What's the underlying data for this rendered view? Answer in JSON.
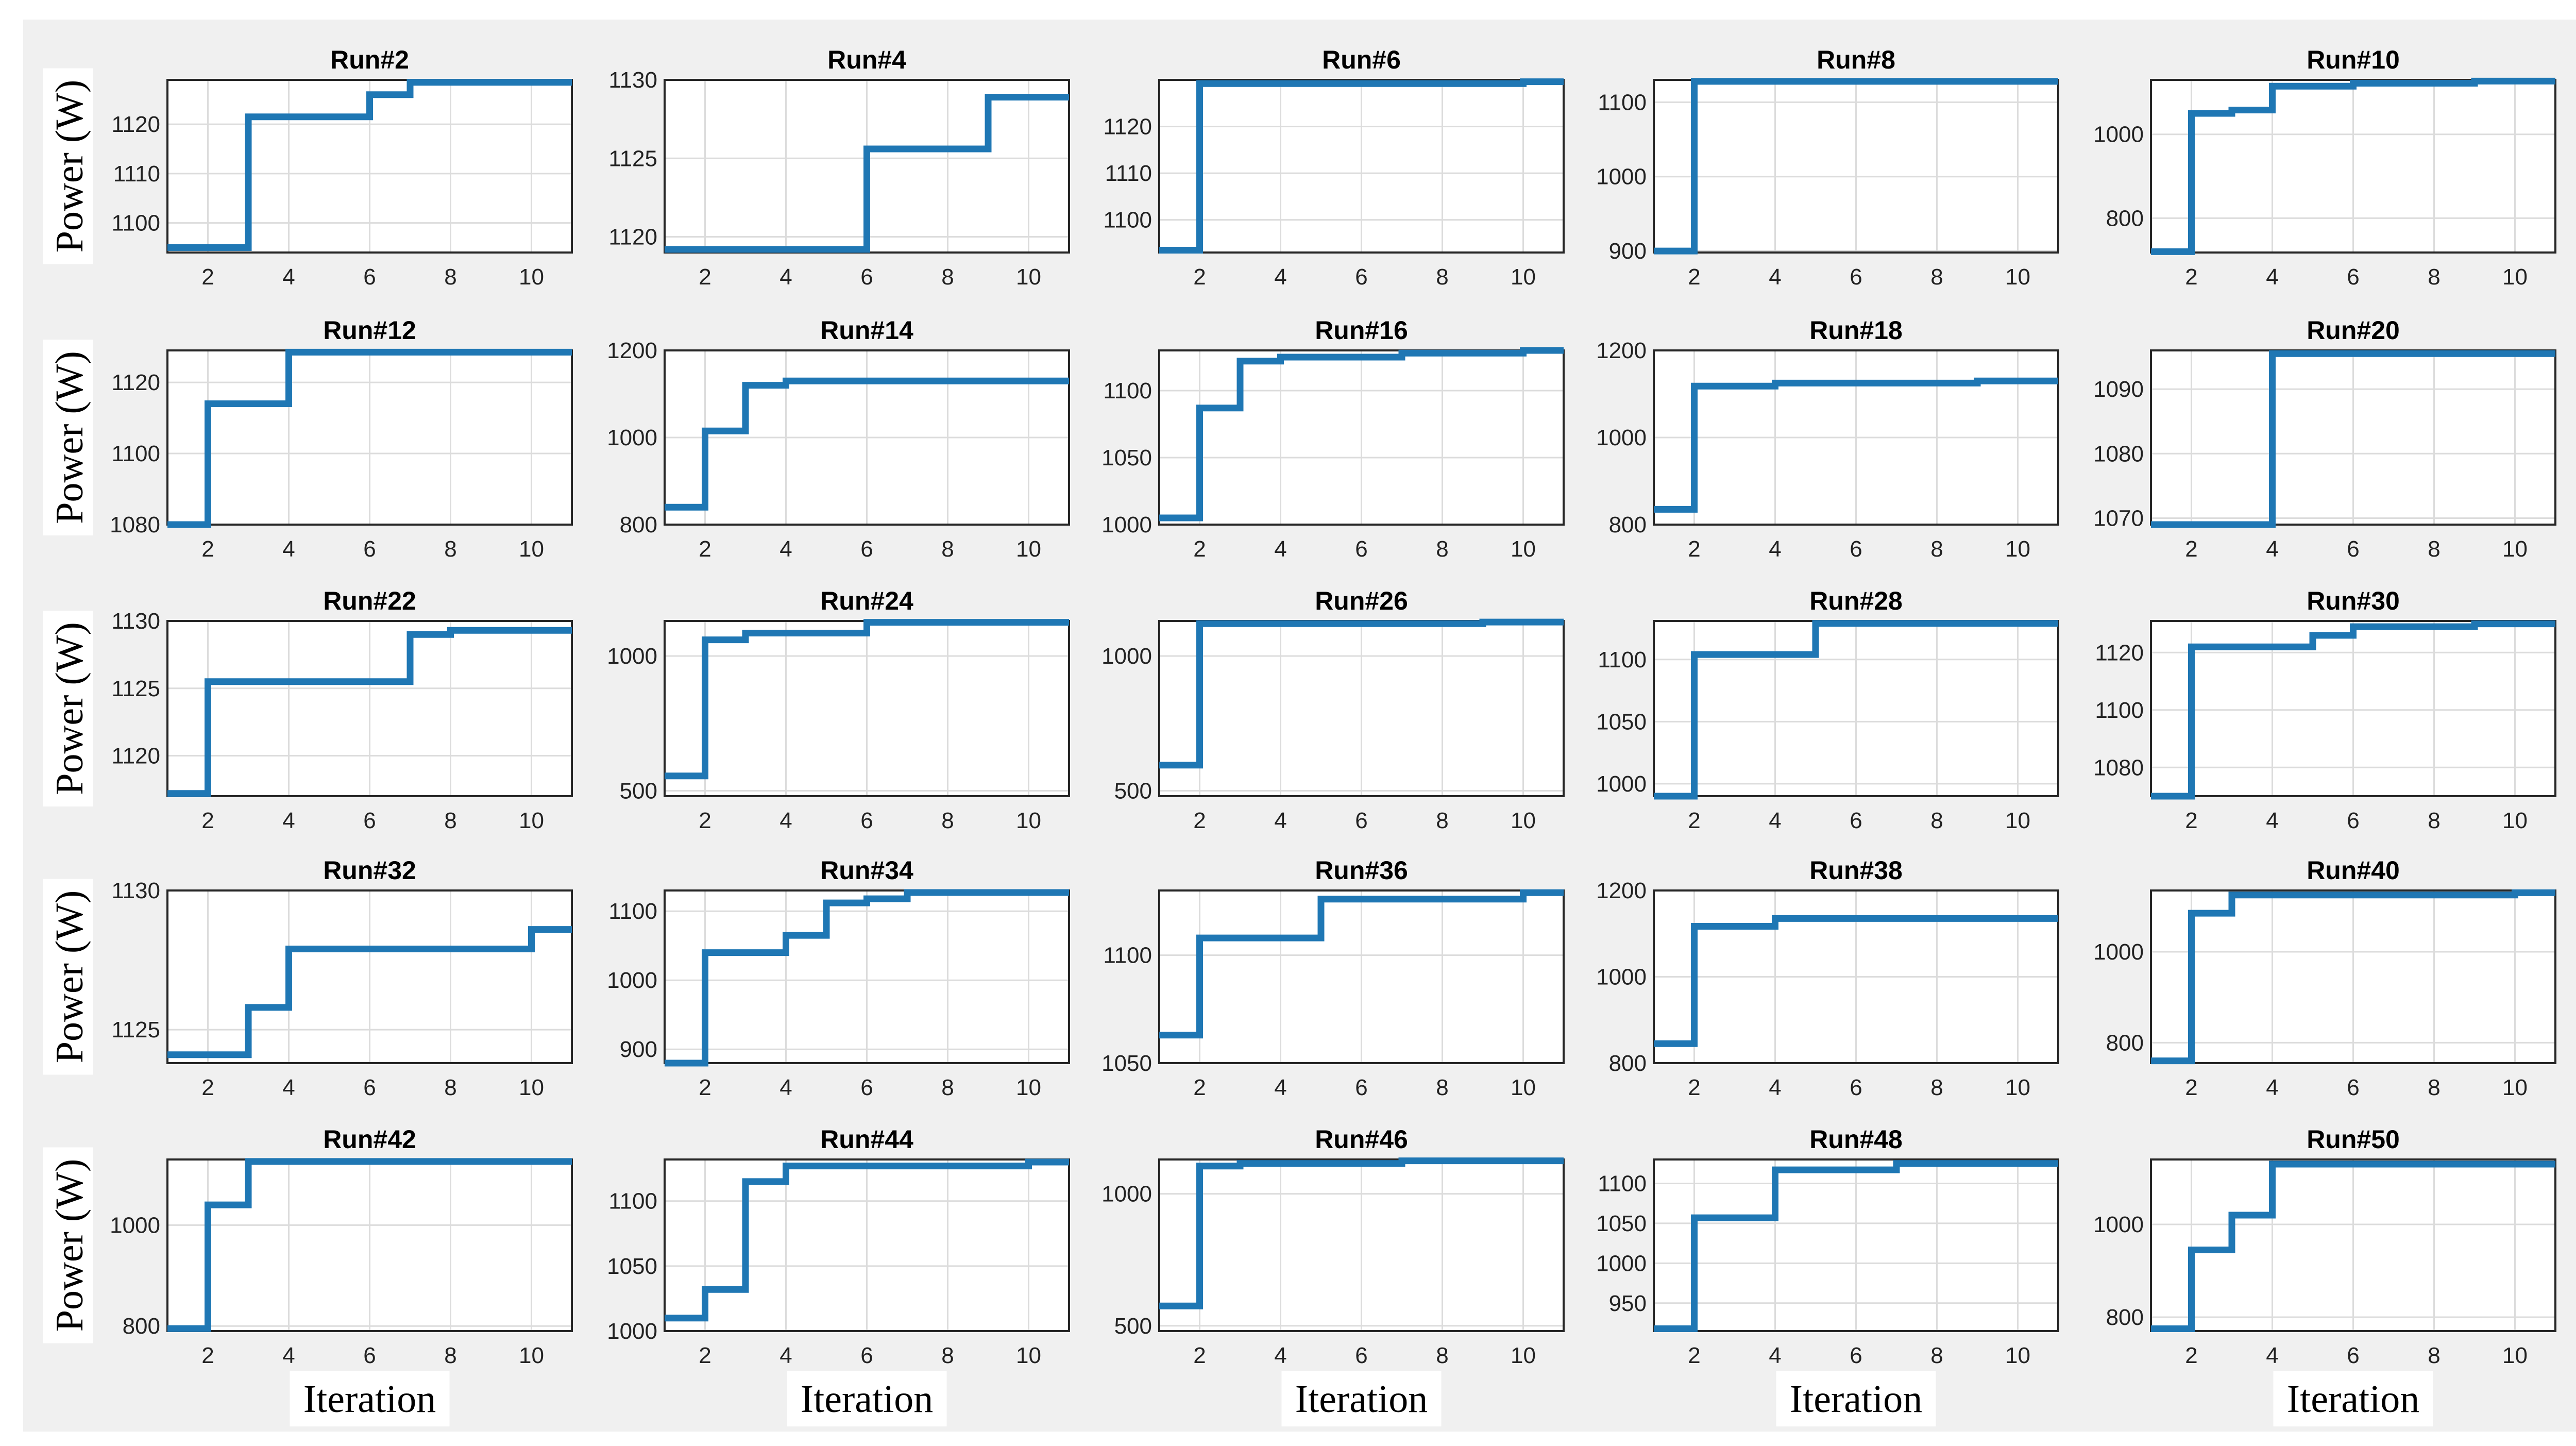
{
  "ylabel": "Power (W)",
  "xlabel": "Iteration",
  "colors": {
    "series": "#1f77b4",
    "panel": "#f0f0f0"
  },
  "chart_data": [
    {
      "type": "line",
      "title": "Run#2",
      "xlabel": "",
      "ylabel": "Power (W)",
      "xlim": [
        1,
        11
      ],
      "ylim": [
        1094,
        1129
      ],
      "xticks": [
        2,
        4,
        6,
        8,
        10
      ],
      "yticks": [
        1100,
        1110,
        1120
      ],
      "series": [
        {
          "name": "Run#2",
          "x": [
            1,
            3,
            3,
            6,
            6,
            7,
            7,
            11
          ],
          "y": [
            1095,
            1095,
            1121.5,
            1121.5,
            1126,
            1126,
            1128.5,
            1128.5
          ]
        }
      ]
    },
    {
      "type": "line",
      "title": "Run#4",
      "xlabel": "",
      "ylabel": "",
      "xlim": [
        1,
        11
      ],
      "ylim": [
        1119,
        1130
      ],
      "xticks": [
        2,
        4,
        6,
        8,
        10
      ],
      "yticks": [
        1120,
        1125,
        1130
      ],
      "series": [
        {
          "name": "Run#4",
          "x": [
            1,
            6,
            6,
            9,
            9,
            11
          ],
          "y": [
            1119.2,
            1119.2,
            1125.6,
            1125.6,
            1128.9,
            1128.9
          ]
        }
      ]
    },
    {
      "type": "line",
      "title": "Run#6",
      "xlabel": "",
      "ylabel": "",
      "xlim": [
        1,
        11
      ],
      "ylim": [
        1093,
        1130
      ],
      "xticks": [
        2,
        4,
        6,
        8,
        10
      ],
      "yticks": [
        1100,
        1110,
        1120
      ],
      "series": [
        {
          "name": "Run#6",
          "x": [
            1,
            2,
            2,
            10,
            10,
            11
          ],
          "y": [
            1093.5,
            1093.5,
            1129.2,
            1129.2,
            1129.6,
            1129.6
          ]
        }
      ]
    },
    {
      "type": "line",
      "title": "Run#8",
      "xlabel": "",
      "ylabel": "",
      "xlim": [
        1,
        11
      ],
      "ylim": [
        898,
        1130
      ],
      "xticks": [
        2,
        4,
        6,
        8,
        10
      ],
      "yticks": [
        900,
        1000,
        1100
      ],
      "series": [
        {
          "name": "Run#8",
          "x": [
            1,
            2,
            2,
            11
          ],
          "y": [
            900,
            900,
            1128,
            1128
          ]
        }
      ]
    },
    {
      "type": "line",
      "title": "Run#10",
      "xlabel": "",
      "ylabel": "",
      "xlim": [
        1,
        11
      ],
      "ylim": [
        718,
        1130
      ],
      "xticks": [
        2,
        4,
        6,
        8,
        10
      ],
      "yticks": [
        800,
        1000
      ],
      "series": [
        {
          "name": "Run#10",
          "x": [
            1,
            2,
            2,
            3,
            3,
            4,
            4,
            6,
            6,
            9,
            9,
            11
          ],
          "y": [
            720,
            720,
            1050,
            1050,
            1058,
            1058,
            1115,
            1115,
            1122,
            1122,
            1127,
            1127
          ]
        }
      ]
    },
    {
      "type": "line",
      "title": "Run#12",
      "xlabel": "",
      "ylabel": "Power (W)",
      "xlim": [
        1,
        11
      ],
      "ylim": [
        1080,
        1129
      ],
      "xticks": [
        2,
        4,
        6,
        8,
        10
      ],
      "yticks": [
        1080,
        1100,
        1120
      ],
      "series": [
        {
          "name": "Run#12",
          "x": [
            1,
            2,
            2,
            4,
            4,
            11
          ],
          "y": [
            1080,
            1080,
            1114,
            1114,
            1128.5,
            1128.5
          ]
        }
      ]
    },
    {
      "type": "line",
      "title": "Run#14",
      "xlabel": "",
      "ylabel": "",
      "xlim": [
        1,
        11
      ],
      "ylim": [
        800,
        1200
      ],
      "xticks": [
        2,
        4,
        6,
        8,
        10
      ],
      "yticks": [
        800,
        1000,
        1200
      ],
      "series": [
        {
          "name": "Run#14",
          "x": [
            1,
            2,
            2,
            3,
            3,
            4,
            4,
            11
          ],
          "y": [
            840,
            840,
            1015,
            1015,
            1120,
            1120,
            1130,
            1130
          ]
        }
      ]
    },
    {
      "type": "line",
      "title": "Run#16",
      "xlabel": "",
      "ylabel": "",
      "xlim": [
        1,
        11
      ],
      "ylim": [
        1000,
        1130
      ],
      "xticks": [
        2,
        4,
        6,
        8,
        10
      ],
      "yticks": [
        1000,
        1050,
        1100
      ],
      "series": [
        {
          "name": "Run#16",
          "x": [
            1,
            2,
            2,
            3,
            3,
            4,
            4,
            7,
            7,
            10,
            10,
            11
          ],
          "y": [
            1005,
            1005,
            1087,
            1087,
            1122,
            1122,
            1125,
            1125,
            1128,
            1128,
            1130,
            1130
          ]
        }
      ]
    },
    {
      "type": "line",
      "title": "Run#18",
      "xlabel": "",
      "ylabel": "",
      "xlim": [
        1,
        11
      ],
      "ylim": [
        800,
        1200
      ],
      "xticks": [
        2,
        4,
        6,
        8,
        10
      ],
      "yticks": [
        800,
        1000,
        1200
      ],
      "series": [
        {
          "name": "Run#18",
          "x": [
            1,
            2,
            2,
            4,
            4,
            9,
            9,
            11
          ],
          "y": [
            835,
            835,
            1118,
            1118,
            1125,
            1125,
            1130,
            1130
          ]
        }
      ]
    },
    {
      "type": "line",
      "title": "Run#20",
      "xlabel": "",
      "ylabel": "",
      "xlim": [
        1,
        11
      ],
      "ylim": [
        1069,
        1096
      ],
      "xticks": [
        2,
        4,
        6,
        8,
        10
      ],
      "yticks": [
        1070,
        1080,
        1090
      ],
      "series": [
        {
          "name": "Run#20",
          "x": [
            1,
            4,
            4,
            11
          ],
          "y": [
            1069,
            1069,
            1095.5,
            1095.5
          ]
        }
      ]
    },
    {
      "type": "line",
      "title": "Run#22",
      "xlabel": "",
      "ylabel": "Power (W)",
      "xlim": [
        1,
        11
      ],
      "ylim": [
        1117,
        1130
      ],
      "xticks": [
        2,
        4,
        6,
        8,
        10
      ],
      "yticks": [
        1120,
        1125,
        1130
      ],
      "series": [
        {
          "name": "Run#22",
          "x": [
            1,
            2,
            2,
            7,
            7,
            8,
            8,
            11
          ],
          "y": [
            1117.2,
            1117.2,
            1125.5,
            1125.5,
            1129,
            1129,
            1129.3,
            1129.3
          ]
        }
      ]
    },
    {
      "type": "line",
      "title": "Run#24",
      "xlabel": "",
      "ylabel": "",
      "xlim": [
        1,
        11
      ],
      "ylim": [
        480,
        1130
      ],
      "xticks": [
        2,
        4,
        6,
        8,
        10
      ],
      "yticks": [
        500,
        1000
      ],
      "series": [
        {
          "name": "Run#24",
          "x": [
            1,
            2,
            2,
            3,
            3,
            6,
            6,
            11
          ],
          "y": [
            555,
            555,
            1060,
            1060,
            1085,
            1085,
            1125,
            1125
          ]
        }
      ]
    },
    {
      "type": "line",
      "title": "Run#26",
      "xlabel": "",
      "ylabel": "",
      "xlim": [
        1,
        11
      ],
      "ylim": [
        480,
        1130
      ],
      "xticks": [
        2,
        4,
        6,
        8,
        10
      ],
      "yticks": [
        500,
        1000
      ],
      "series": [
        {
          "name": "Run#26",
          "x": [
            1,
            2,
            2,
            9,
            9,
            11
          ],
          "y": [
            595,
            595,
            1120,
            1120,
            1126,
            1126
          ]
        }
      ]
    },
    {
      "type": "line",
      "title": "Run#28",
      "xlabel": "",
      "ylabel": "",
      "xlim": [
        1,
        11
      ],
      "ylim": [
        990,
        1131
      ],
      "xticks": [
        2,
        4,
        6,
        8,
        10
      ],
      "yticks": [
        1000,
        1050,
        1100
      ],
      "series": [
        {
          "name": "Run#28",
          "x": [
            1,
            2,
            2,
            5,
            5,
            11
          ],
          "y": [
            990,
            990,
            1104,
            1104,
            1129,
            1129
          ]
        }
      ]
    },
    {
      "type": "line",
      "title": "Run#30",
      "xlabel": "",
      "ylabel": "",
      "xlim": [
        1,
        11
      ],
      "ylim": [
        1070,
        1131
      ],
      "xticks": [
        2,
        4,
        6,
        8,
        10
      ],
      "yticks": [
        1080,
        1100,
        1120
      ],
      "series": [
        {
          "name": "Run#30",
          "x": [
            1,
            2,
            2,
            5,
            5,
            6,
            6,
            9,
            9,
            11
          ],
          "y": [
            1070,
            1070,
            1122,
            1122,
            1126,
            1126,
            1129,
            1129,
            1130,
            1130
          ]
        }
      ]
    },
    {
      "type": "line",
      "title": "Run#32",
      "xlabel": "",
      "ylabel": "Power (W)",
      "xlim": [
        1,
        11
      ],
      "ylim": [
        1123.8,
        1130
      ],
      "xticks": [
        2,
        4,
        6,
        8,
        10
      ],
      "yticks": [
        1125,
        1130
      ],
      "series": [
        {
          "name": "Run#32",
          "x": [
            1,
            3,
            3,
            4,
            4,
            10,
            10,
            11
          ],
          "y": [
            1124.1,
            1124.1,
            1125.8,
            1125.8,
            1127.9,
            1127.9,
            1128.6,
            1128.6
          ]
        }
      ]
    },
    {
      "type": "line",
      "title": "Run#34",
      "xlabel": "",
      "ylabel": "",
      "xlim": [
        1,
        11
      ],
      "ylim": [
        880,
        1130
      ],
      "xticks": [
        2,
        4,
        6,
        8,
        10
      ],
      "yticks": [
        900,
        1000,
        1100
      ],
      "series": [
        {
          "name": "Run#34",
          "x": [
            1,
            2,
            2,
            4,
            4,
            5,
            5,
            6,
            6,
            7,
            7,
            11
          ],
          "y": [
            880,
            880,
            1040,
            1040,
            1065,
            1065,
            1112,
            1112,
            1118,
            1118,
            1127,
            1127
          ]
        }
      ]
    },
    {
      "type": "line",
      "title": "Run#36",
      "xlabel": "",
      "ylabel": "",
      "xlim": [
        1,
        11
      ],
      "ylim": [
        1050,
        1130
      ],
      "xticks": [
        2,
        4,
        6,
        8,
        10
      ],
      "yticks": [
        1050,
        1100
      ],
      "series": [
        {
          "name": "Run#36",
          "x": [
            1,
            2,
            2,
            5,
            5,
            10,
            10,
            11
          ],
          "y": [
            1063,
            1063,
            1108,
            1108,
            1126,
            1126,
            1129,
            1129
          ]
        }
      ]
    },
    {
      "type": "line",
      "title": "Run#38",
      "xlabel": "",
      "ylabel": "",
      "xlim": [
        1,
        11
      ],
      "ylim": [
        800,
        1200
      ],
      "xticks": [
        2,
        4,
        6,
        8,
        10
      ],
      "yticks": [
        800,
        1000,
        1200
      ],
      "series": [
        {
          "name": "Run#38",
          "x": [
            1,
            2,
            2,
            4,
            4,
            11
          ],
          "y": [
            845,
            845,
            1117,
            1117,
            1135,
            1135
          ]
        }
      ]
    },
    {
      "type": "line",
      "title": "Run#40",
      "xlabel": "",
      "ylabel": "",
      "xlim": [
        1,
        11
      ],
      "ylim": [
        755,
        1135
      ],
      "xticks": [
        2,
        4,
        6,
        8,
        10
      ],
      "yticks": [
        800,
        1000
      ],
      "series": [
        {
          "name": "Run#40",
          "x": [
            1,
            2,
            2,
            3,
            3,
            10,
            10,
            11
          ],
          "y": [
            760,
            760,
            1085,
            1085,
            1125,
            1125,
            1130,
            1130
          ]
        }
      ]
    },
    {
      "type": "line",
      "title": "Run#42",
      "xlabel": "",
      "ylabel": "Power (W)",
      "xlim": [
        1,
        11
      ],
      "ylim": [
        790,
        1130
      ],
      "xticks": [
        2,
        4,
        6,
        8,
        10
      ],
      "yticks": [
        800,
        1000
      ],
      "series": [
        {
          "name": "Run#42",
          "x": [
            1,
            2,
            2,
            3,
            3,
            11
          ],
          "y": [
            795,
            795,
            1040,
            1040,
            1126,
            1126
          ]
        }
      ]
    },
    {
      "type": "line",
      "title": "Run#44",
      "xlabel": "",
      "ylabel": "",
      "xlim": [
        1,
        11
      ],
      "ylim": [
        1000,
        1132
      ],
      "xticks": [
        2,
        4,
        6,
        8,
        10
      ],
      "yticks": [
        1000,
        1050,
        1100
      ],
      "series": [
        {
          "name": "Run#44",
          "x": [
            1,
            2,
            2,
            3,
            3,
            4,
            4,
            10,
            10,
            11
          ],
          "y": [
            1010,
            1010,
            1032,
            1032,
            1115,
            1115,
            1127,
            1127,
            1130,
            1130
          ]
        }
      ]
    },
    {
      "type": "line",
      "title": "Run#46",
      "xlabel": "",
      "ylabel": "",
      "xlim": [
        1,
        11
      ],
      "ylim": [
        480,
        1130
      ],
      "xticks": [
        2,
        4,
        6,
        8,
        10
      ],
      "yticks": [
        500,
        1000
      ],
      "series": [
        {
          "name": "Run#46",
          "x": [
            1,
            2,
            2,
            3,
            3,
            7,
            7,
            11
          ],
          "y": [
            575,
            575,
            1105,
            1105,
            1115,
            1115,
            1125,
            1125
          ]
        }
      ]
    },
    {
      "type": "line",
      "title": "Run#48",
      "xlabel": "",
      "ylabel": "",
      "xlim": [
        1,
        11
      ],
      "ylim": [
        915,
        1130
      ],
      "xticks": [
        2,
        4,
        6,
        8,
        10
      ],
      "yticks": [
        950,
        1000,
        1050,
        1100
      ],
      "series": [
        {
          "name": "Run#48",
          "x": [
            1,
            2,
            2,
            4,
            4,
            7,
            7,
            11
          ],
          "y": [
            918,
            918,
            1057,
            1057,
            1117,
            1117,
            1125,
            1125
          ]
        }
      ]
    },
    {
      "type": "line",
      "title": "Run#50",
      "xlabel": "",
      "ylabel": "",
      "xlim": [
        1,
        11
      ],
      "ylim": [
        770,
        1140
      ],
      "xticks": [
        2,
        4,
        6,
        8,
        10
      ],
      "yticks": [
        800,
        1000
      ],
      "series": [
        {
          "name": "Run#50",
          "x": [
            1,
            2,
            2,
            3,
            3,
            4,
            4,
            11
          ],
          "y": [
            775,
            775,
            945,
            945,
            1020,
            1020,
            1130,
            1130
          ]
        }
      ]
    }
  ]
}
